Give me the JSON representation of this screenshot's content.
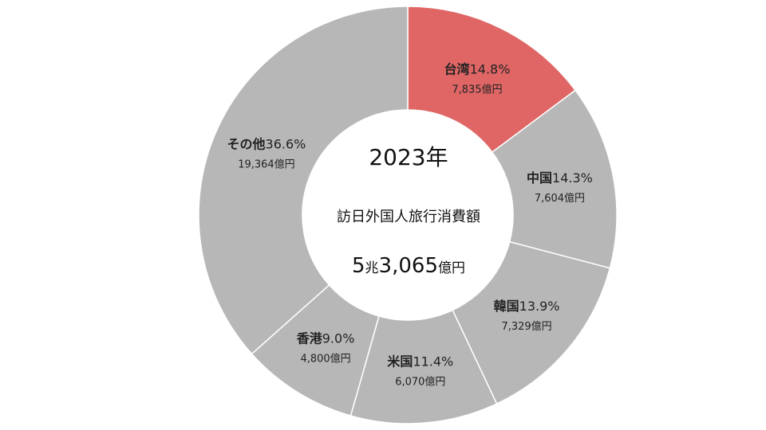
{
  "chart_data": {
    "type": "pie",
    "donut": true,
    "center": {
      "year": "2023年",
      "title": "訪日外国人旅行消費額",
      "total_prefix": "5",
      "total_unit1": "兆",
      "total_number": "3,065",
      "total_unit2": "億円"
    },
    "slices": [
      {
        "label": "台湾",
        "percent": 14.8,
        "percent_text": "14.8%",
        "amount": "7,835億円",
        "color": "#e06666",
        "highlight": true
      },
      {
        "label": "中国",
        "percent": 14.3,
        "percent_text": "14.3%",
        "amount": "7,604億円",
        "color": "#b7b7b7",
        "highlight": false
      },
      {
        "label": "韓国",
        "percent": 13.9,
        "percent_text": "13.9%",
        "amount": "7,329億円",
        "color": "#b7b7b7",
        "highlight": false
      },
      {
        "label": "米国",
        "percent": 11.4,
        "percent_text": "11.4%",
        "amount": "6,070億円",
        "color": "#b7b7b7",
        "highlight": false
      },
      {
        "label": "香港",
        "percent": 9.0,
        "percent_text": "9.0%",
        "amount": "4,800億円",
        "color": "#b7b7b7",
        "highlight": false
      },
      {
        "label": "その他",
        "percent": 36.6,
        "percent_text": "36.6%",
        "amount": "19,364億円",
        "color": "#b7b7b7",
        "highlight": false
      }
    ],
    "start_angle_deg": 0,
    "direction": "clockwise",
    "slice_border_color": "#ffffff"
  }
}
